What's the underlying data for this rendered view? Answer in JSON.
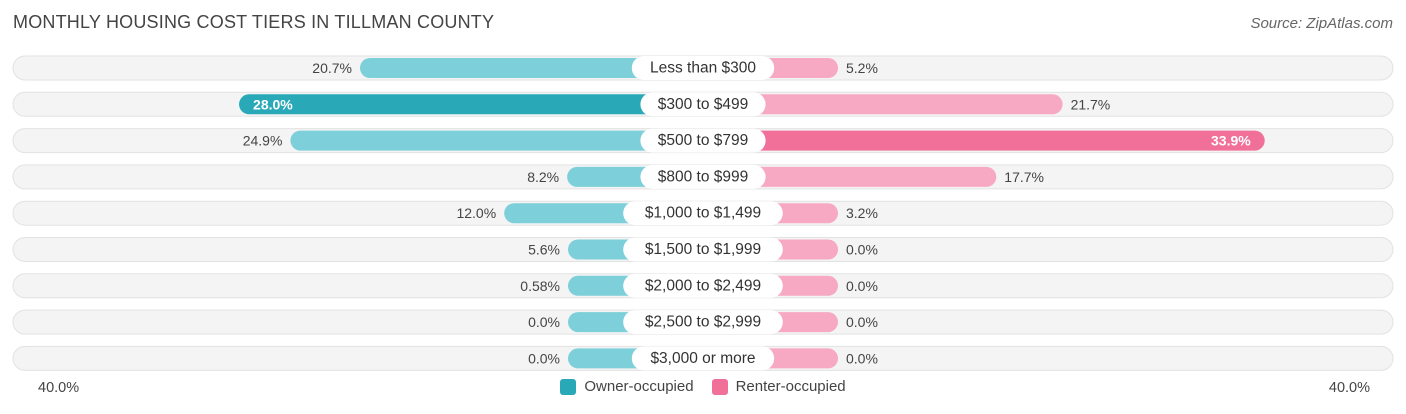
{
  "header": {
    "title": "MONTHLY HOUSING COST TIERS IN TILLMAN COUNTY",
    "source": "Source: ZipAtlas.com"
  },
  "axis": {
    "left_label": "40.0%",
    "right_label": "40.0%"
  },
  "legend": {
    "owner_label": "Owner-occupied",
    "renter_label": "Renter-occupied"
  },
  "colors": {
    "owner_strong": "#29a9b8",
    "owner_light": "#7dcfd9",
    "renter_strong": "#f0709a",
    "renter_light": "#f7a8c2",
    "track": "#efefef"
  },
  "chart_data": {
    "type": "bar",
    "orientation": "horizontal-diverging",
    "title": "MONTHLY HOUSING COST TIERS IN TILLMAN COUNTY",
    "xlim": [
      -40,
      40
    ],
    "categories": [
      "Less than $300",
      "$300 to $499",
      "$500 to $799",
      "$800 to $999",
      "$1,000 to $1,499",
      "$1,500 to $1,999",
      "$2,000 to $2,499",
      "$2,500 to $2,999",
      "$3,000 or more"
    ],
    "series": [
      {
        "name": "Owner-occupied",
        "side": "left",
        "values": [
          20.7,
          28.0,
          24.9,
          8.2,
          12.0,
          5.6,
          0.58,
          0.0,
          0.0
        ],
        "labels": [
          "20.7%",
          "28.0%",
          "24.9%",
          "8.2%",
          "12.0%",
          "5.6%",
          "0.58%",
          "0.0%",
          "0.0%"
        ]
      },
      {
        "name": "Renter-occupied",
        "side": "right",
        "values": [
          5.2,
          21.7,
          33.9,
          17.7,
          3.2,
          0.0,
          0.0,
          0.0,
          0.0
        ],
        "labels": [
          "5.2%",
          "21.7%",
          "33.9%",
          "17.7%",
          "3.2%",
          "0.0%",
          "0.0%",
          "0.0%",
          "0.0%"
        ]
      }
    ],
    "legend_position": "bottom-center"
  }
}
